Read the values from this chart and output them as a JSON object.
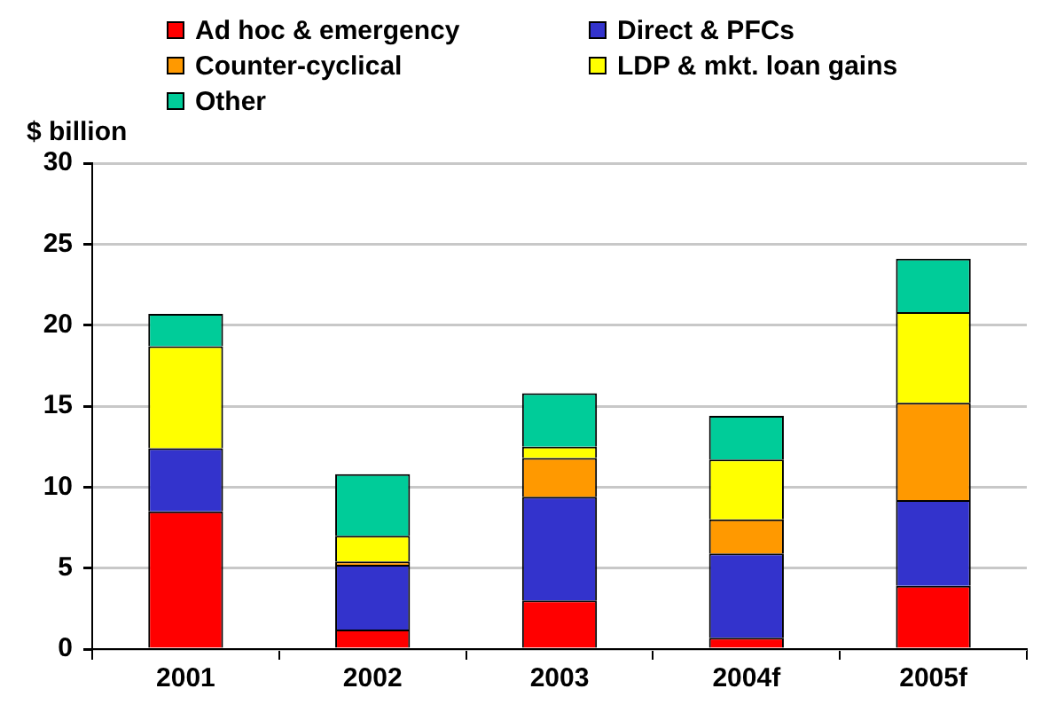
{
  "chart_data": {
    "type": "bar",
    "ylabel": "$ billion",
    "stacked": true,
    "grid": "y",
    "legend": "top",
    "categories": [
      "2001",
      "2002",
      "2003",
      "2004f",
      "2005f"
    ],
    "ylim": [
      0,
      30
    ],
    "yticks": [
      0,
      5,
      10,
      15,
      20,
      25,
      30
    ],
    "series": [
      {
        "name": "Ad hoc & emergency",
        "color": "#ff0000",
        "values": [
          8.5,
          1.2,
          3.0,
          0.7,
          3.9
        ]
      },
      {
        "name": "Direct & PFCs",
        "color": "#3333cc",
        "values": [
          3.9,
          4.0,
          6.4,
          5.2,
          5.3
        ]
      },
      {
        "name": "Counter-cyclical",
        "color": "#ff9900",
        "values": [
          0,
          0.2,
          2.4,
          2.1,
          6.0
        ]
      },
      {
        "name": "LDP & mkt. loan gains",
        "color": "#ffff00",
        "values": [
          6.3,
          1.6,
          0.7,
          3.7,
          5.6
        ]
      },
      {
        "name": "Other",
        "color": "#00cc99",
        "values": [
          2.0,
          3.8,
          3.3,
          2.7,
          3.3
        ]
      }
    ]
  }
}
